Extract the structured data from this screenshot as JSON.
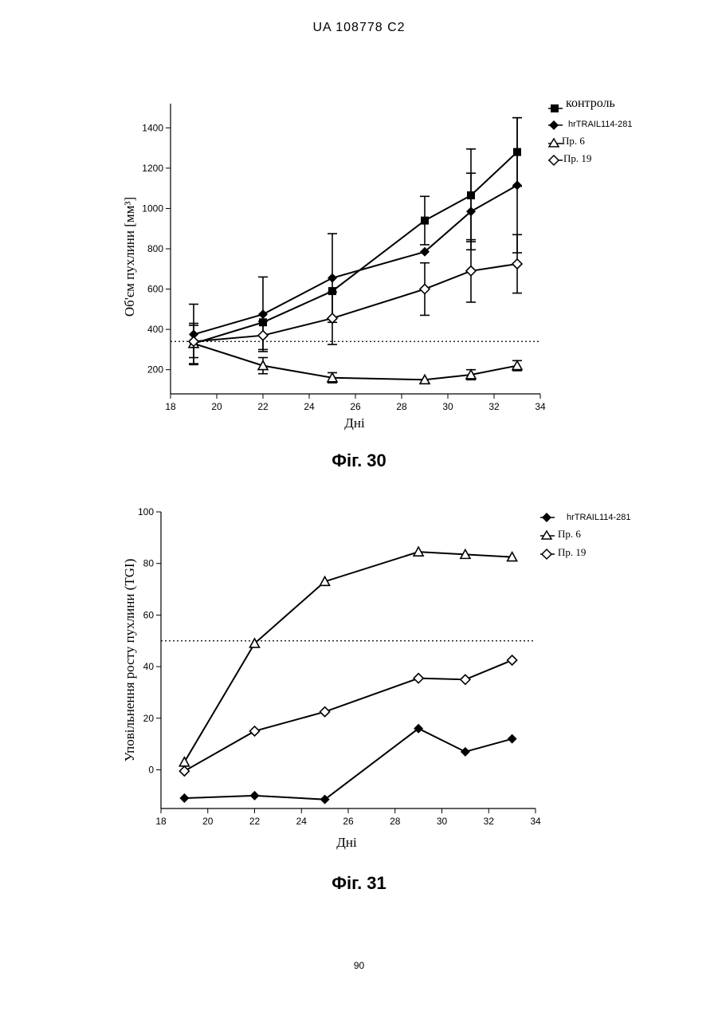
{
  "header": {
    "text": "UA   108778   C2"
  },
  "page_number": "90",
  "chart_data": [
    {
      "type": "line",
      "caption": "Фіг. 30",
      "xlabel": "Дні",
      "ylabel": "Об'єм пухлини  [мм³]",
      "xlim": [
        18,
        34
      ],
      "ylim": [
        80,
        1520
      ],
      "x_ticks": [
        18,
        20,
        22,
        24,
        26,
        28,
        30,
        32,
        34
      ],
      "y_ticks": [
        200,
        400,
        600,
        800,
        1000,
        1200,
        1400
      ],
      "reference_line": 340,
      "series": [
        {
          "name": "контроль",
          "marker": "square-filled",
          "x": [
            19,
            22,
            25,
            29,
            31,
            33
          ],
          "y": [
            330,
            435,
            590,
            940,
            1065,
            1280
          ],
          "err": [
            100,
            0,
            0,
            120,
            230,
            170
          ]
        },
        {
          "name": "hrTRAIL114-281",
          "marker": "diamond-filled",
          "x": [
            19,
            22,
            25,
            29,
            31,
            33
          ],
          "y": [
            375,
            475,
            655,
            785,
            985,
            1115
          ],
          "err": [
            150,
            185,
            220,
            0,
            190,
            335
          ]
        },
        {
          "name": "Пр. 6",
          "marker": "triangle-open",
          "x": [
            19,
            22,
            25,
            29,
            31,
            33
          ],
          "y": [
            330,
            220,
            160,
            150,
            175,
            220
          ],
          "err": [
            0,
            40,
            25,
            0,
            25,
            25
          ]
        },
        {
          "name": "Пр. 19",
          "marker": "diamond-open",
          "x": [
            19,
            22,
            25,
            29,
            31,
            33
          ],
          "y": [
            340,
            370,
            455,
            600,
            690,
            725
          ],
          "err": [
            80,
            70,
            130,
            130,
            155,
            145
          ]
        }
      ]
    },
    {
      "type": "line",
      "caption": "Фіг. 31",
      "xlabel": "Дні",
      "ylabel": "Уповільнення росту пухлини (TGI)",
      "xlim": [
        18,
        34
      ],
      "ylim": [
        -15,
        100
      ],
      "x_ticks": [
        18,
        20,
        22,
        24,
        26,
        28,
        30,
        32,
        34
      ],
      "y_ticks": [
        0,
        20,
        40,
        60,
        80,
        100
      ],
      "reference_line": 50,
      "series": [
        {
          "name": "hrTRAIL114-281",
          "marker": "diamond-filled",
          "x": [
            19,
            22,
            25,
            29,
            31,
            33
          ],
          "y": [
            -11,
            -10,
            -11.5,
            16,
            7,
            12
          ]
        },
        {
          "name": "Пр. 6",
          "marker": "triangle-open",
          "x": [
            19,
            22,
            25,
            29,
            31,
            33
          ],
          "y": [
            3,
            49,
            73,
            84.5,
            83.5,
            82.5
          ]
        },
        {
          "name": "Пр. 19",
          "marker": "diamond-open",
          "x": [
            19,
            22,
            25,
            29,
            31,
            33
          ],
          "y": [
            -0.5,
            15,
            22.5,
            35.5,
            35,
            42.5
          ]
        }
      ]
    }
  ]
}
